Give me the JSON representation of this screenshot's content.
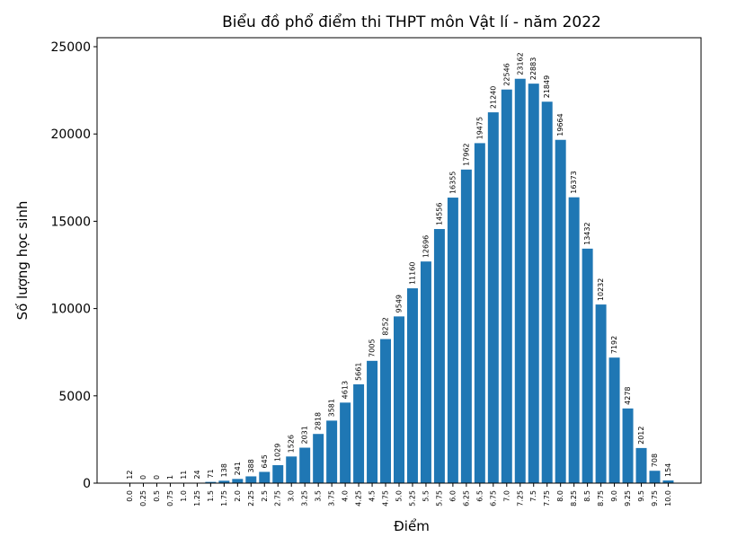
{
  "chart_data": {
    "type": "bar",
    "title": "Biểu đồ phổ điểm thi THPT môn Vật lí - năm 2022",
    "xlabel": "Điểm",
    "ylabel": "Số lượng học sinh",
    "categories": [
      "0.0",
      "0.25",
      "0.5",
      "0.75",
      "1.0",
      "1.25",
      "1.5",
      "1.75",
      "2.0",
      "2.25",
      "2.5",
      "2.75",
      "3.0",
      "3.25",
      "3.5",
      "3.75",
      "4.0",
      "4.25",
      "4.5",
      "4.75",
      "5.0",
      "5.25",
      "5.5",
      "5.75",
      "6.0",
      "6.25",
      "6.5",
      "6.75",
      "7.0",
      "7.25",
      "7.5",
      "7.75",
      "8.0",
      "8.25",
      "8.5",
      "8.75",
      "9.0",
      "9.25",
      "9.5",
      "9.75",
      "10.0"
    ],
    "values": [
      12,
      0,
      0,
      1,
      11,
      24,
      71,
      138,
      241,
      388,
      645,
      1029,
      1526,
      2031,
      2818,
      3581,
      4613,
      5661,
      7005,
      8252,
      9549,
      11160,
      12696,
      14556,
      16355,
      17962,
      19475,
      21240,
      22546,
      23162,
      22883,
      21849,
      19664,
      16373,
      13432,
      10232,
      7192,
      4278,
      2012,
      708,
      154
    ],
    "color": "#1f77b4",
    "ylim": [
      0,
      25514
    ],
    "yticks": [
      0,
      5000,
      10000,
      15000,
      20000,
      25000
    ],
    "grid": false
  }
}
